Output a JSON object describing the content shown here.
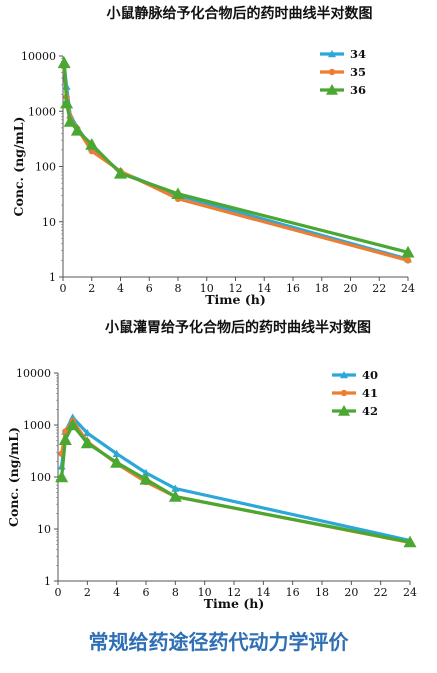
{
  "chart_data": [
    {
      "type": "line",
      "title": "小鼠静脉给予化合物后的药时曲线半对数图",
      "xlabel": "Time (h)",
      "ylabel": "Conc. (ng/mL)",
      "xlim": [
        0,
        24
      ],
      "ylim": [
        1,
        10000
      ],
      "yscale": "log",
      "xticks": [
        "0",
        "2",
        "4",
        "6",
        "8",
        "10",
        "12",
        "14",
        "16",
        "18",
        "20",
        "22",
        "24"
      ],
      "yticks": [
        "1",
        "10",
        "100",
        "1000",
        "10000"
      ],
      "legend_position": "top-right",
      "series": [
        {
          "name": "34",
          "color": "#2ca7d8",
          "marker": "triangle",
          "x": [
            0.083,
            0.25,
            0.5,
            1,
            2,
            4,
            8,
            24
          ],
          "y": [
            7000,
            2800,
            850,
            500,
            220,
            80,
            30,
            2.1
          ]
        },
        {
          "name": "35",
          "color": "#ed7d31",
          "marker": "circle",
          "x": [
            0.083,
            0.25,
            0.5,
            1,
            2,
            4,
            8,
            24
          ],
          "y": [
            6500,
            1800,
            750,
            480,
            190,
            82,
            26,
            2.0
          ]
        },
        {
          "name": "36",
          "color": "#4aa832",
          "marker": "triangle",
          "x": [
            0.083,
            0.25,
            0.5,
            1,
            2,
            4,
            8,
            24
          ],
          "y": [
            7500,
            1400,
            650,
            450,
            250,
            75,
            32,
            2.8
          ]
        }
      ]
    },
    {
      "type": "line",
      "title": "小鼠灌胃给予化合物后的药时曲线半对数图",
      "xlabel": "Time (h)",
      "ylabel": "Conc. (ng/mL)",
      "xlim": [
        0,
        24
      ],
      "ylim": [
        1,
        10000
      ],
      "yscale": "log",
      "xticks": [
        "0",
        "2",
        "4",
        "6",
        "8",
        "10",
        "12",
        "14",
        "16",
        "18",
        "20",
        "22",
        "24"
      ],
      "yticks": [
        "1",
        "10",
        "100",
        "1000",
        "10000"
      ],
      "legend_position": "top-right",
      "series": [
        {
          "name": "40",
          "color": "#2ca7d8",
          "marker": "triangle",
          "x": [
            0.25,
            0.5,
            1,
            2,
            4,
            6,
            8,
            24
          ],
          "y": [
            160,
            750,
            1400,
            700,
            280,
            120,
            60,
            6.0
          ]
        },
        {
          "name": "41",
          "color": "#ed7d31",
          "marker": "circle",
          "x": [
            0.25,
            0.5,
            1,
            2,
            4,
            6,
            8,
            24
          ],
          "y": [
            280,
            750,
            1200,
            480,
            180,
            80,
            42,
            5.5
          ]
        },
        {
          "name": "42",
          "color": "#4aa832",
          "marker": "triangle",
          "x": [
            0.25,
            0.5,
            1,
            2,
            4,
            6,
            8,
            24
          ],
          "y": [
            100,
            520,
            1000,
            450,
            190,
            90,
            42,
            5.6
          ]
        }
      ]
    }
  ],
  "footer": {
    "text": "常规给药途径药代动力学评价"
  }
}
